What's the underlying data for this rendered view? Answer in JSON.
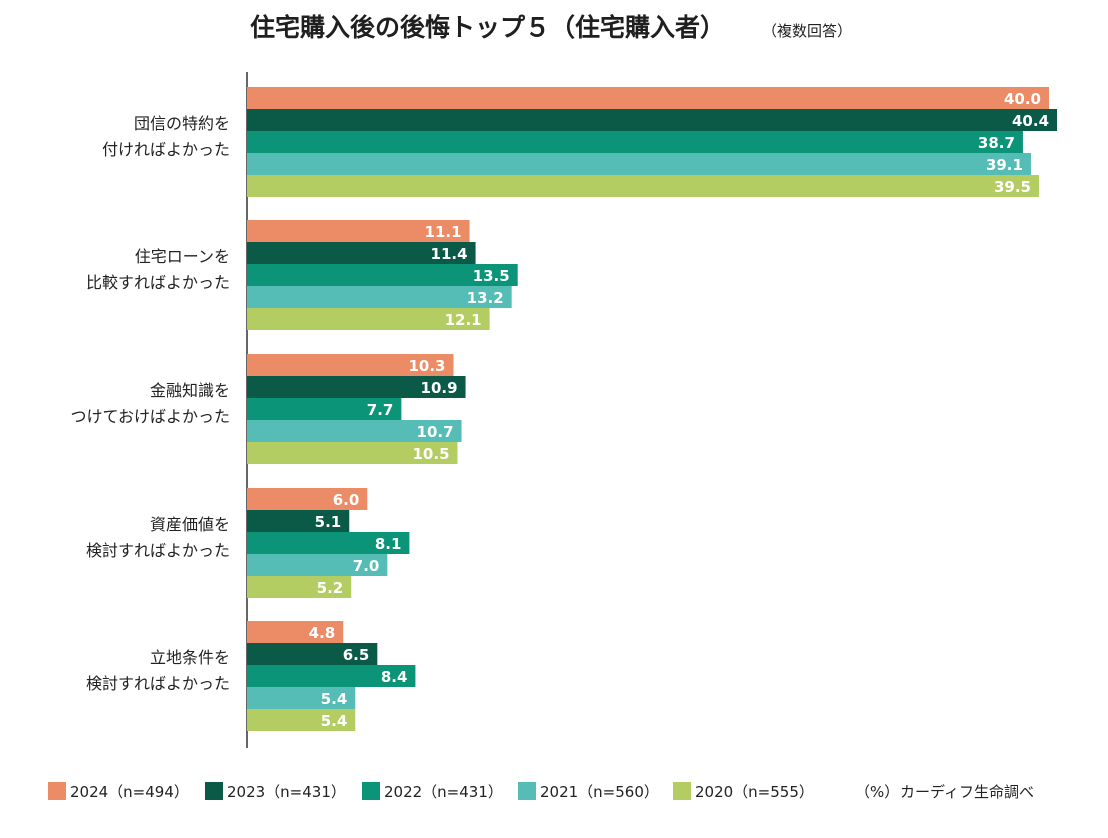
{
  "chart_data": {
    "type": "bar",
    "orientation": "horizontal",
    "title": "住宅購入後の後悔トップ５（住宅購入者）",
    "subtitle": "（複数回答）",
    "unit": "（%）",
    "source": "カーディフ生命調べ",
    "legend_position": "bottom",
    "categories": [
      [
        "団信の特約を",
        "付ければよかった"
      ],
      [
        "住宅ローンを",
        "比較すればよかった"
      ],
      [
        "金融知識を",
        "つけておけばよかった"
      ],
      [
        "資産価値を",
        "検討すればよかった"
      ],
      [
        "立地条件を",
        "検討すればよかった"
      ]
    ],
    "xlim": [
      0,
      42
    ],
    "series": [
      {
        "name": "2024（n=494）",
        "color": "#ec8c66",
        "values": [
          40.0,
          11.1,
          10.3,
          6.0,
          4.8
        ]
      },
      {
        "name": "2023（n=431）",
        "color": "#0b5a48",
        "values": [
          40.4,
          11.4,
          10.9,
          5.1,
          6.5
        ]
      },
      {
        "name": "2022（n=431）",
        "color": "#0c9478",
        "values": [
          38.7,
          13.5,
          7.7,
          8.1,
          8.4
        ]
      },
      {
        "name": "2021（n=560）",
        "color": "#55bdb5",
        "values": [
          39.1,
          13.2,
          10.7,
          7.0,
          5.4
        ]
      },
      {
        "name": "2020（n=555）",
        "color": "#b4cd63",
        "values": [
          39.5,
          12.1,
          10.5,
          5.2,
          5.4
        ]
      }
    ]
  }
}
